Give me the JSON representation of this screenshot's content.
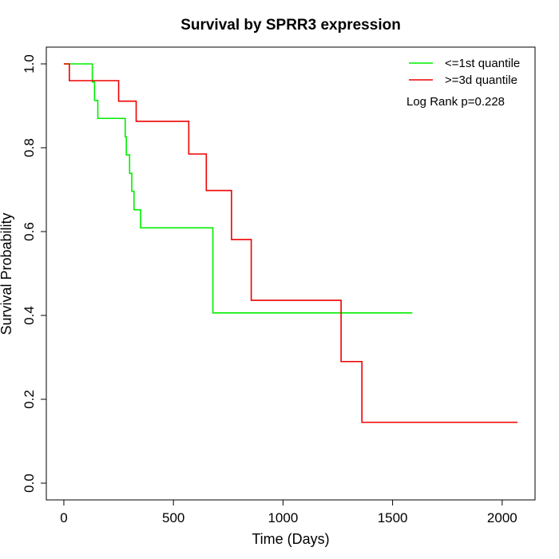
{
  "chart_data": {
    "type": "line",
    "title": "Survival by SPRR3 expression",
    "xlabel": "Time (Days)",
    "ylabel": "Survival Probability",
    "xlim": [
      -80,
      2150
    ],
    "ylim": [
      -0.04,
      1.04
    ],
    "x_ticks": [
      0,
      500,
      1000,
      1500,
      2000
    ],
    "y_ticks": [
      0.0,
      0.2,
      0.4,
      0.6,
      0.8,
      1.0
    ],
    "x_tick_labels": [
      "0",
      "500",
      "1000",
      "1500",
      "2000"
    ],
    "y_tick_labels": [
      "0.0",
      "0.2",
      "0.4",
      "0.6",
      "0.8",
      "1.0"
    ],
    "grid": false,
    "legend_position": "top-right",
    "annotation": "Log Rank p=0.228",
    "series": [
      {
        "name": "<=1st quantile",
        "color": "#00ee00",
        "x": [
          0,
          110,
          130,
          140,
          155,
          280,
          285,
          300,
          310,
          320,
          350,
          680,
          1590
        ],
        "y": [
          1.0,
          1.0,
          0.957,
          0.913,
          0.87,
          0.826,
          0.783,
          0.739,
          0.696,
          0.652,
          0.609,
          0.406,
          0.406
        ]
      },
      {
        "name": ">=3d quantile",
        "color": "#ee0000",
        "x": [
          0,
          25,
          250,
          330,
          570,
          650,
          765,
          855,
          1265,
          1360,
          2070
        ],
        "y": [
          1.0,
          0.96,
          0.911,
          0.863,
          0.785,
          0.698,
          0.581,
          0.436,
          0.29,
          0.145,
          0.145
        ]
      }
    ]
  }
}
